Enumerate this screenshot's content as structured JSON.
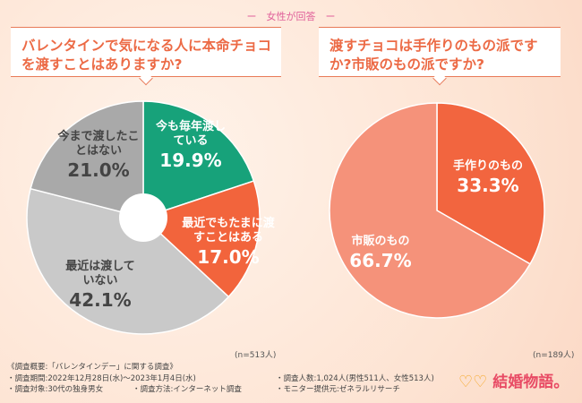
{
  "subtitle": "ー　女性が回答　ー",
  "chart_data": [
    {
      "type": "pie",
      "title": "バレンタインで気になる人に本命チョコを渡すことはありますか?",
      "n_label": "(n=513人)",
      "slices": [
        {
          "label": "今も毎年渡している",
          "value": 19.9,
          "display": "19.9%",
          "color": "#17a27a"
        },
        {
          "label": "最近でもたまに渡すことはある",
          "value": 17.0,
          "display": "17.0%",
          "color": "#f2643c"
        },
        {
          "label": "最近は渡していない",
          "value": 42.1,
          "display": "42.1%",
          "color": "#c9c9c9"
        },
        {
          "label": "今まで渡したことはない",
          "value": 21.0,
          "display": "21.0%",
          "color": "#a9a9a9"
        }
      ]
    },
    {
      "type": "pie",
      "title": "渡すチョコは手作りのもの派ですか?市販のもの派ですか?",
      "n_label": "(n=189人)",
      "slices": [
        {
          "label": "手作りのもの",
          "value": 33.3,
          "display": "33.3%",
          "color": "#f2653f"
        },
        {
          "label": "市販のもの",
          "value": 66.7,
          "display": "66.7%",
          "color": "#f5927a"
        }
      ]
    }
  ],
  "footer": {
    "overview": "《調査概要:「バレンタインデー」に関する調査》",
    "period": "・調査期間:2022年12月28日(水)〜2023年1月4日(水)",
    "count": "・調査人数:1,024人(男性511人、女性513人)",
    "target": "・調査対象:30代の独身男女",
    "method": "・調査方法:インターネット調査",
    "provider": "・モニター提供元:ゼネラルリサーチ"
  },
  "logo": "結婚物語。"
}
